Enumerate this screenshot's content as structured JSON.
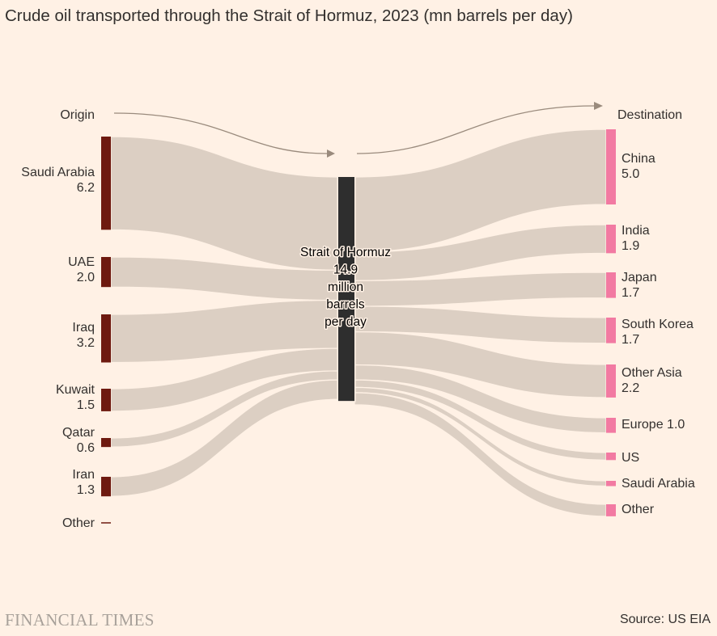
{
  "header": {
    "title": "Crude oil transported through the Strait of Hormuz, 2023 (mn barrels per day)"
  },
  "footer": {
    "brand": "FINANCIAL TIMES",
    "source": "Source: US EIA"
  },
  "colors": {
    "background": "#fff1e5",
    "flow": "#dccfc3",
    "origin_bar": "#6e1a10",
    "destination_bar": "#f27aa2",
    "strait_bar": "#2e2e2e",
    "arrow": "#9a8b7d"
  },
  "chart_data": {
    "type": "sankey",
    "title": "Crude oil transported through the Strait of Hormuz, 2023 (mn barrels per day)",
    "unit": "mn barrels per day",
    "origin_heading": "Origin",
    "destination_heading": "Destination",
    "center": {
      "name": "Strait of Hormuz",
      "value": 14.9,
      "value_text": "14.9",
      "unit_lines": [
        "million",
        "barrels",
        "per day"
      ]
    },
    "origins": [
      {
        "name": "Saudi Arabia",
        "value": 6.2,
        "value_text": "6.2"
      },
      {
        "name": "UAE",
        "value": 2.0,
        "value_text": "2.0"
      },
      {
        "name": "Iraq",
        "value": 3.2,
        "value_text": "3.2"
      },
      {
        "name": "Kuwait",
        "value": 1.5,
        "value_text": "1.5"
      },
      {
        "name": "Qatar",
        "value": 0.6,
        "value_text": "0.6"
      },
      {
        "name": "Iran",
        "value": 1.3,
        "value_text": "1.3"
      },
      {
        "name": "Other",
        "value": 0.05,
        "value_text": ""
      }
    ],
    "destinations": [
      {
        "name": "China",
        "value": 5.0,
        "value_text": "5.0"
      },
      {
        "name": "India",
        "value": 1.9,
        "value_text": "1.9"
      },
      {
        "name": "Japan",
        "value": 1.7,
        "value_text": "1.7"
      },
      {
        "name": "South Korea",
        "value": 1.7,
        "value_text": "1.7"
      },
      {
        "name": "Other Asia",
        "value": 2.2,
        "value_text": "2.2"
      },
      {
        "name": "Europe",
        "value": 1.0,
        "value_text": "1.0"
      },
      {
        "name": "US",
        "value": 0.5,
        "value_text": ""
      },
      {
        "name": "Saudi Arabia",
        "value": 0.35,
        "value_text": ""
      },
      {
        "name": "Other",
        "value": 0.8,
        "value_text": ""
      }
    ]
  }
}
